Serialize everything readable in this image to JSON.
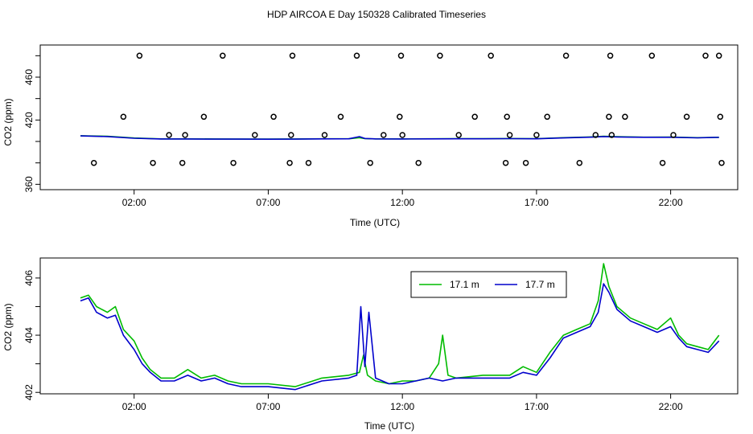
{
  "figure": {
    "title": "HDP AIRCOA E  Day 150328  Calibrated Timeseries"
  },
  "chart_data": [
    {
      "type": "scatter",
      "xlabel": "Time (UTC)",
      "ylabel": "CO2 (ppm)",
      "xlim": [
        -1.5,
        24.5
      ],
      "ylim": [
        355,
        490
      ],
      "x_ticks": [
        2,
        7,
        12,
        17,
        22
      ],
      "x_tick_labels": [
        "02:00",
        "07:00",
        "12:00",
        "17:00",
        "22:00"
      ],
      "y_ticks": [
        360,
        380,
        400,
        420,
        440,
        460,
        480
      ],
      "y_tick_labels": [
        "360",
        "",
        "",
        "420",
        "",
        "460",
        ""
      ],
      "grid": false,
      "series": [
        {
          "color": "#00bb00",
          "x": [
            0.0,
            1.0,
            2.0,
            3.0,
            4.0,
            5.0,
            6.0,
            7.0,
            8.0,
            9.0,
            10.0,
            10.4,
            10.6,
            11.0,
            12.0,
            13.0,
            14.0,
            15.0,
            16.0,
            17.0,
            18.0,
            19.0,
            19.5,
            20.0,
            21.0,
            22.0,
            23.0,
            23.8
          ],
          "y": [
            405.3,
            404.8,
            403.2,
            402.4,
            402.4,
            402.3,
            402.2,
            402.2,
            402.3,
            402.5,
            402.5,
            403.5,
            402.6,
            402.4,
            402.4,
            402.5,
            402.6,
            402.6,
            402.7,
            402.6,
            403.5,
            404.2,
            404.8,
            404.4,
            404.0,
            404.1,
            403.5,
            403.9
          ]
        },
        {
          "color": "#0000cc",
          "x": [
            0.0,
            1.0,
            2.0,
            3.0,
            4.0,
            5.0,
            6.0,
            7.0,
            8.0,
            9.0,
            10.0,
            10.4,
            10.6,
            11.0,
            12.0,
            13.0,
            14.0,
            15.0,
            16.0,
            17.0,
            18.0,
            19.0,
            19.5,
            20.0,
            21.0,
            22.0,
            23.0,
            23.8
          ],
          "y": [
            405.2,
            404.6,
            403.0,
            402.3,
            402.3,
            402.2,
            402.2,
            402.1,
            402.2,
            402.4,
            402.5,
            404.5,
            402.8,
            402.4,
            402.3,
            402.4,
            402.5,
            402.5,
            402.6,
            402.5,
            403.3,
            404.0,
            404.6,
            404.2,
            403.9,
            403.9,
            403.4,
            403.8
          ]
        }
      ],
      "markers": {
        "x": [
          0.5,
          1.6,
          2.2,
          2.7,
          3.3,
          3.8,
          3.9,
          4.6,
          5.3,
          5.7,
          6.5,
          7.2,
          7.8,
          7.85,
          7.9,
          8.5,
          9.1,
          9.7,
          10.3,
          10.8,
          11.3,
          11.9,
          11.95,
          12.0,
          12.6,
          13.4,
          14.1,
          14.7,
          15.3,
          15.85,
          15.9,
          16.0,
          16.6,
          17.0,
          17.4,
          18.1,
          18.6,
          19.2,
          19.7,
          19.75,
          19.8,
          20.3,
          21.3,
          21.7,
          22.1,
          22.6,
          23.3,
          23.8,
          23.85,
          23.9
        ],
        "y": [
          380,
          423,
          480,
          380,
          406,
          380,
          406,
          423,
          480,
          380,
          406,
          423,
          380,
          406,
          480,
          380,
          406,
          423,
          480,
          380,
          406,
          423,
          480,
          406,
          380,
          480,
          406,
          423,
          480,
          380,
          423,
          406,
          380,
          406,
          423,
          480,
          380,
          406,
          423,
          480,
          406,
          423,
          480,
          380,
          406,
          423,
          480,
          480,
          423,
          380
        ]
      }
    },
    {
      "type": "line",
      "xlabel": "Time (UTC)",
      "ylabel": "CO2 (ppm)",
      "xlim": [
        -1.5,
        24.5
      ],
      "ylim": [
        401.95,
        406.7
      ],
      "x_ticks": [
        2,
        7,
        12,
        17,
        22
      ],
      "x_tick_labels": [
        "02:00",
        "07:00",
        "12:00",
        "17:00",
        "22:00"
      ],
      "y_ticks": [
        402,
        403,
        404,
        405,
        406
      ],
      "y_tick_labels": [
        "402",
        "",
        "404",
        "",
        "406"
      ],
      "grid": false,
      "legend": {
        "placement": "top-right",
        "entries": [
          "17.1 m",
          "17.7 m"
        ]
      },
      "series": [
        {
          "name": "17.1 m",
          "color": "#00bb00",
          "x": [
            0.0,
            0.3,
            0.6,
            1.0,
            1.3,
            1.6,
            2.0,
            2.3,
            2.6,
            3.0,
            3.5,
            4.0,
            4.5,
            5.0,
            5.5,
            6.0,
            7.0,
            8.0,
            9.0,
            10.0,
            10.4,
            10.55,
            10.7,
            11.0,
            11.5,
            12.0,
            12.5,
            13.0,
            13.35,
            13.5,
            13.7,
            14.0,
            15.0,
            16.0,
            16.5,
            17.0,
            17.5,
            18.0,
            18.5,
            19.0,
            19.3,
            19.5,
            19.7,
            20.0,
            20.5,
            21.0,
            21.5,
            22.0,
            22.3,
            22.6,
            23.0,
            23.4,
            23.8
          ],
          "y": [
            405.3,
            405.4,
            405.0,
            404.8,
            405.0,
            404.2,
            403.8,
            403.2,
            402.8,
            402.5,
            402.5,
            402.8,
            402.5,
            402.6,
            402.4,
            402.3,
            402.3,
            402.2,
            402.5,
            402.6,
            402.7,
            403.3,
            402.6,
            402.4,
            402.3,
            402.4,
            402.4,
            402.5,
            403.0,
            404.0,
            402.6,
            402.5,
            402.6,
            402.6,
            402.9,
            402.7,
            403.4,
            404.0,
            404.2,
            404.4,
            405.2,
            406.5,
            405.7,
            405.0,
            404.6,
            404.4,
            404.2,
            404.6,
            404.0,
            403.7,
            403.6,
            403.5,
            404.0
          ]
        },
        {
          "name": "17.7 m",
          "color": "#0000cc",
          "x": [
            0.0,
            0.3,
            0.6,
            1.0,
            1.3,
            1.6,
            2.0,
            2.3,
            2.6,
            3.0,
            3.5,
            4.0,
            4.5,
            5.0,
            5.5,
            6.0,
            7.0,
            8.0,
            9.0,
            10.0,
            10.3,
            10.45,
            10.6,
            10.75,
            11.0,
            11.5,
            12.0,
            12.5,
            13.0,
            13.5,
            14.0,
            15.0,
            16.0,
            16.5,
            17.0,
            17.5,
            18.0,
            18.5,
            19.0,
            19.3,
            19.5,
            19.7,
            20.0,
            20.5,
            21.0,
            21.5,
            22.0,
            22.3,
            22.6,
            23.0,
            23.4,
            23.8
          ],
          "y": [
            405.2,
            405.3,
            404.8,
            404.6,
            404.7,
            404.0,
            403.5,
            403.0,
            402.7,
            402.4,
            402.4,
            402.6,
            402.4,
            402.5,
            402.3,
            402.2,
            402.2,
            402.1,
            402.4,
            402.5,
            402.6,
            405.0,
            402.9,
            404.8,
            402.5,
            402.3,
            402.3,
            402.4,
            402.5,
            402.4,
            402.5,
            402.5,
            402.5,
            402.7,
            402.6,
            403.2,
            403.9,
            404.1,
            404.3,
            404.8,
            405.8,
            405.5,
            404.9,
            404.5,
            404.3,
            404.1,
            404.3,
            403.9,
            403.6,
            403.5,
            403.4,
            403.8
          ]
        }
      ]
    }
  ]
}
